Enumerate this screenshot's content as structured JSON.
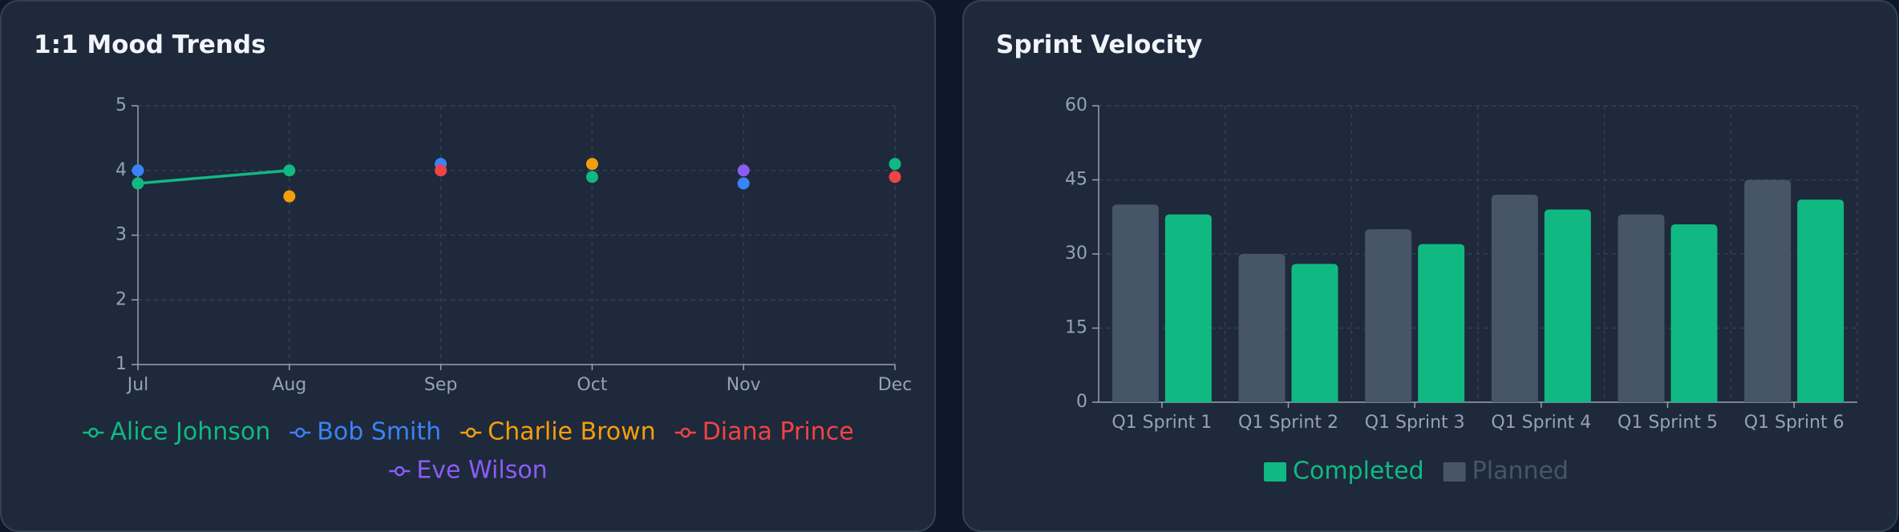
{
  "chart_data": [
    {
      "type": "line",
      "title": "1:1 Mood Trends",
      "categories": [
        "Jul",
        "Aug",
        "Sep",
        "Oct",
        "Nov",
        "Dec"
      ],
      "ylim": [
        1,
        5
      ],
      "yticks": [
        1,
        2,
        3,
        4,
        5
      ],
      "grid": true,
      "series": [
        {
          "name": "Alice Johnson",
          "color": "#10b981",
          "values": [
            3.8,
            4.0,
            null,
            3.9,
            null,
            4.1
          ]
        },
        {
          "name": "Bob Smith",
          "color": "#3b82f6",
          "values": [
            4.0,
            null,
            4.1,
            null,
            3.8,
            null
          ]
        },
        {
          "name": "Charlie Brown",
          "color": "#f59e0b",
          "values": [
            null,
            3.6,
            null,
            4.1,
            null,
            null
          ]
        },
        {
          "name": "Diana Prince",
          "color": "#ef4444",
          "values": [
            null,
            null,
            4.0,
            null,
            null,
            3.9
          ]
        },
        {
          "name": "Eve Wilson",
          "color": "#8b5cf6",
          "values": [
            null,
            null,
            null,
            null,
            4.0,
            null
          ]
        }
      ]
    },
    {
      "type": "bar",
      "title": "Sprint Velocity",
      "categories": [
        "Q1 Sprint 1",
        "Q1 Sprint 2",
        "Q1 Sprint 3",
        "Q1 Sprint 4",
        "Q1 Sprint 5",
        "Q1 Sprint 6"
      ],
      "ylim": [
        0,
        60
      ],
      "yticks": [
        0,
        15,
        30,
        45,
        60
      ],
      "grid": true,
      "series": [
        {
          "name": "Completed",
          "color": "#10b981",
          "values": [
            38,
            28,
            32,
            39,
            36,
            41
          ]
        },
        {
          "name": "Planned",
          "color": "#475569",
          "values": [
            40,
            30,
            35,
            42,
            38,
            45
          ]
        }
      ]
    }
  ]
}
